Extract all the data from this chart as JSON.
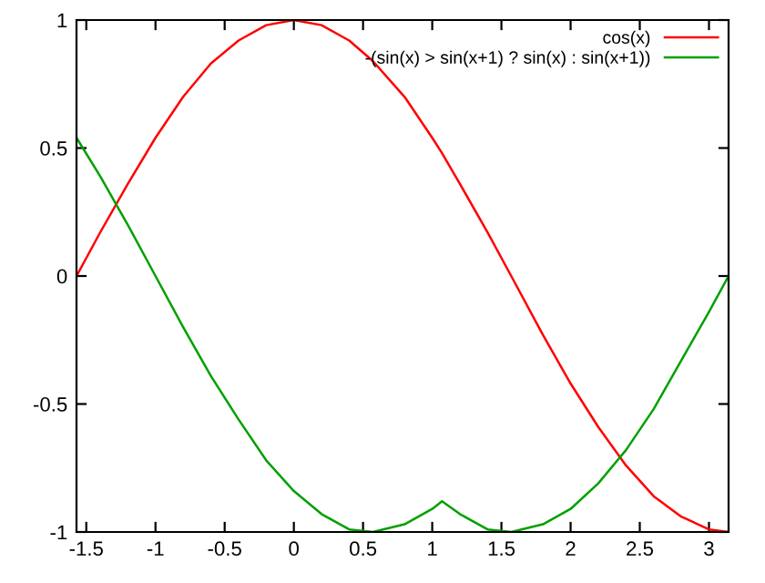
{
  "chart_data": {
    "type": "line",
    "x": [
      -1.5708,
      -1.4,
      -1.2,
      -1.0,
      -0.8,
      -0.6,
      -0.4,
      -0.2,
      0,
      0.2,
      0.4,
      0.5708,
      0.8,
      1.0,
      1.0708,
      1.2,
      1.4,
      1.5708,
      1.8,
      2.0,
      2.2,
      2.4,
      2.6,
      2.8,
      3.0,
      3.1416
    ],
    "series": [
      {
        "name": "cos(x)",
        "color": "#ff0000",
        "values": [
          0,
          0.17,
          0.36,
          0.54,
          0.7,
          0.83,
          0.92,
          0.98,
          1,
          0.98,
          0.92,
          0.84,
          0.7,
          0.54,
          0.48,
          0.36,
          0.17,
          0,
          -0.23,
          -0.42,
          -0.59,
          -0.74,
          -0.86,
          -0.94,
          -0.99,
          -1
        ]
      },
      {
        "name": "-(sin(x) > sin(x+1) ? sin(x) : sin(x+1))",
        "color": "#00a000",
        "values": [
          0.54,
          0.39,
          0.2,
          0,
          -0.2,
          -0.39,
          -0.56,
          -0.72,
          -0.84,
          -0.93,
          -0.99,
          -1,
          -0.97,
          -0.91,
          -0.88,
          -0.93,
          -0.99,
          -1,
          -0.97,
          -0.91,
          -0.81,
          -0.68,
          -0.52,
          -0.33,
          -0.14,
          0
        ]
      }
    ],
    "xlim": [
      -1.5708,
      3.1416
    ],
    "ylim": [
      -1,
      1
    ],
    "xticks": [
      -1.5,
      -1,
      -0.5,
      0,
      0.5,
      1,
      1.5,
      2,
      2.5,
      3
    ],
    "yticks": [
      -1,
      -0.5,
      0,
      0.5,
      1
    ],
    "legend": "top right",
    "grid": false,
    "marker": "none",
    "line_style": "solid"
  }
}
